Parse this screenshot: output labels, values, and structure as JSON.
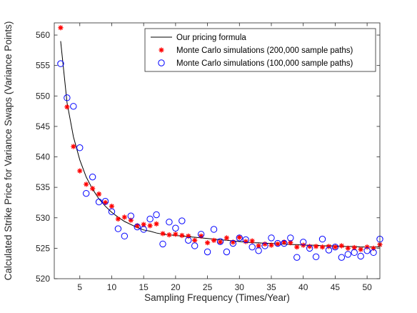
{
  "chart_data": {
    "type": "line",
    "xlabel": "Sampling Frequency (Times/Year)",
    "ylabel": "Calculated Strike Price for Variance Swaps (Variance Points)",
    "xlim": [
      1,
      52
    ],
    "ylim": [
      520,
      562
    ],
    "xticks": [
      5,
      10,
      15,
      20,
      25,
      30,
      35,
      40,
      45,
      50
    ],
    "yticks": [
      520,
      525,
      530,
      535,
      540,
      545,
      550,
      555,
      560
    ],
    "grid": false,
    "legend_position": "top-right",
    "colors": {
      "formula": "#000000",
      "mc200k": "#ff0000",
      "mc100k": "#0000ff",
      "axis": "#262626"
    },
    "series": [
      {
        "name": "Our pricing formula",
        "kind": "line",
        "x": [
          2,
          3,
          4,
          5,
          6,
          7,
          8,
          9,
          10,
          11,
          12,
          13,
          14,
          15,
          16,
          17,
          18,
          19,
          20,
          21,
          22,
          23,
          24,
          25,
          26,
          27,
          28,
          29,
          30,
          31,
          32,
          33,
          34,
          35,
          36,
          37,
          38,
          39,
          40,
          41,
          42,
          43,
          44,
          45,
          46,
          47,
          48,
          49,
          50,
          51,
          52
        ],
        "y": [
          559.0,
          548.9,
          543.3,
          539.5,
          536.7,
          534.7,
          533.1,
          531.9,
          530.9,
          530.1,
          529.4,
          528.9,
          528.4,
          528.0,
          527.8,
          527.5,
          527.3,
          527.2,
          527.1,
          527.0,
          526.9,
          526.8,
          526.7,
          526.6,
          526.5,
          526.4,
          526.3,
          526.2,
          526.1,
          526.0,
          525.9,
          525.9,
          525.8,
          525.8,
          525.7,
          525.7,
          525.6,
          525.6,
          525.5,
          525.5,
          525.5,
          525.4,
          525.4,
          525.4,
          525.3,
          525.3,
          525.3,
          525.2,
          525.2,
          525.2,
          525.2
        ]
      },
      {
        "name": "Monte Carlo simulations (200,000 sample paths)",
        "kind": "marker-star",
        "x": [
          2,
          3,
          4,
          5,
          6,
          7,
          8,
          9,
          10,
          11,
          12,
          13,
          14,
          15,
          16,
          17,
          18,
          19,
          20,
          21,
          22,
          23,
          24,
          25,
          26,
          27,
          28,
          29,
          30,
          31,
          32,
          33,
          34,
          35,
          36,
          37,
          38,
          39,
          40,
          41,
          42,
          43,
          44,
          45,
          46,
          47,
          48,
          49,
          50,
          51,
          52
        ],
        "y": [
          561.2,
          548.2,
          541.7,
          537.7,
          535.5,
          534.8,
          533.9,
          532.5,
          531.9,
          529.8,
          530.1,
          529.6,
          528.7,
          528.9,
          528.7,
          529.0,
          527.4,
          527.2,
          527.3,
          527.1,
          527.0,
          526.3,
          527.0,
          525.9,
          526.3,
          526.0,
          526.7,
          526.0,
          526.8,
          526.1,
          526.2,
          525.4,
          525.7,
          525.5,
          525.7,
          526.0,
          525.9,
          525.2,
          525.5,
          525.3,
          525.3,
          525.2,
          525.3,
          525.2,
          525.4,
          525.0,
          525.1,
          524.8,
          525.2,
          525.0,
          525.6
        ]
      },
      {
        "name": "Monte Carlo simulations (100,000 sample paths)",
        "kind": "marker-circle",
        "x": [
          2,
          3,
          4,
          5,
          6,
          7,
          8,
          9,
          10,
          11,
          12,
          13,
          14,
          15,
          16,
          17,
          18,
          19,
          20,
          21,
          22,
          23,
          24,
          25,
          26,
          27,
          28,
          29,
          30,
          31,
          32,
          33,
          34,
          35,
          36,
          37,
          38,
          39,
          40,
          41,
          42,
          43,
          44,
          45,
          46,
          47,
          48,
          49,
          50,
          51,
          52
        ],
        "y": [
          555.3,
          549.7,
          548.3,
          541.5,
          534.0,
          536.7,
          532.6,
          532.7,
          531.0,
          528.2,
          527.0,
          530.3,
          528.5,
          528.1,
          529.8,
          530.5,
          525.7,
          529.3,
          528.3,
          529.5,
          526.3,
          525.4,
          527.3,
          524.4,
          528.1,
          526.1,
          524.4,
          525.8,
          526.7,
          526.4,
          525.2,
          524.6,
          525.4,
          526.7,
          525.8,
          525.8,
          526.7,
          523.5,
          526.0,
          525.0,
          523.6,
          526.5,
          524.7,
          525.2,
          523.5,
          524.0,
          524.3,
          523.7,
          524.6,
          524.3,
          526.5
        ]
      }
    ]
  }
}
